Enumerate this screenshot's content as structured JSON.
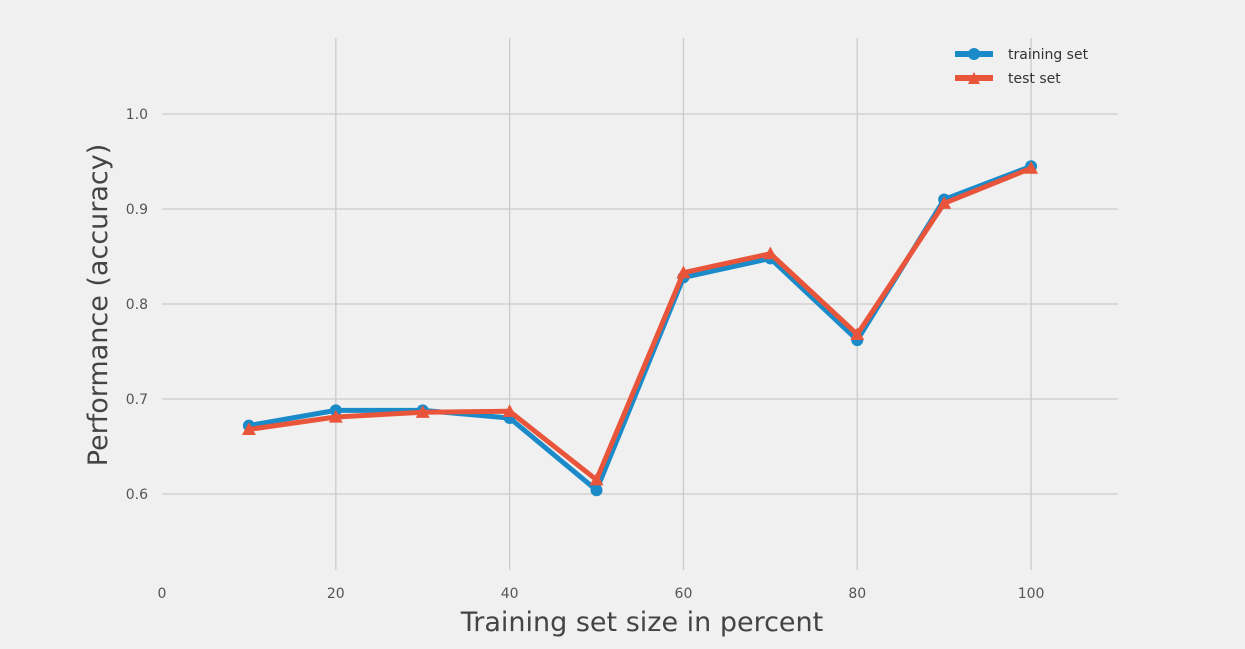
{
  "chart_data": {
    "type": "line",
    "xlabel": "Training set size in percent",
    "ylabel": "Performance (accuracy)",
    "xlim": [
      0,
      110
    ],
    "ylim": [
      0.52,
      1.08
    ],
    "xticks": [
      0,
      20,
      40,
      60,
      80,
      100
    ],
    "yticks": [
      0.6,
      0.7,
      0.8,
      0.9,
      1.0
    ],
    "xtick_labels": [
      "0",
      "20",
      "40",
      "60",
      "80",
      "100"
    ],
    "ytick_labels": [
      "0.6",
      "0.7",
      "0.8",
      "0.9",
      "1.0"
    ],
    "grid": true,
    "legend_position": "top-right",
    "x": [
      10,
      20,
      30,
      40,
      50,
      60,
      70,
      80,
      90,
      100
    ],
    "series": [
      {
        "name": "training set",
        "color": "#1a8bc8",
        "marker": "circle",
        "values": [
          0.672,
          0.688,
          0.688,
          0.68,
          0.604,
          0.828,
          0.848,
          0.762,
          0.91,
          0.945
        ]
      },
      {
        "name": "test set",
        "color": "#e8553b",
        "marker": "triangle",
        "values": [
          0.668,
          0.681,
          0.686,
          0.687,
          0.615,
          0.833,
          0.853,
          0.768,
          0.906,
          0.943
        ]
      }
    ]
  }
}
